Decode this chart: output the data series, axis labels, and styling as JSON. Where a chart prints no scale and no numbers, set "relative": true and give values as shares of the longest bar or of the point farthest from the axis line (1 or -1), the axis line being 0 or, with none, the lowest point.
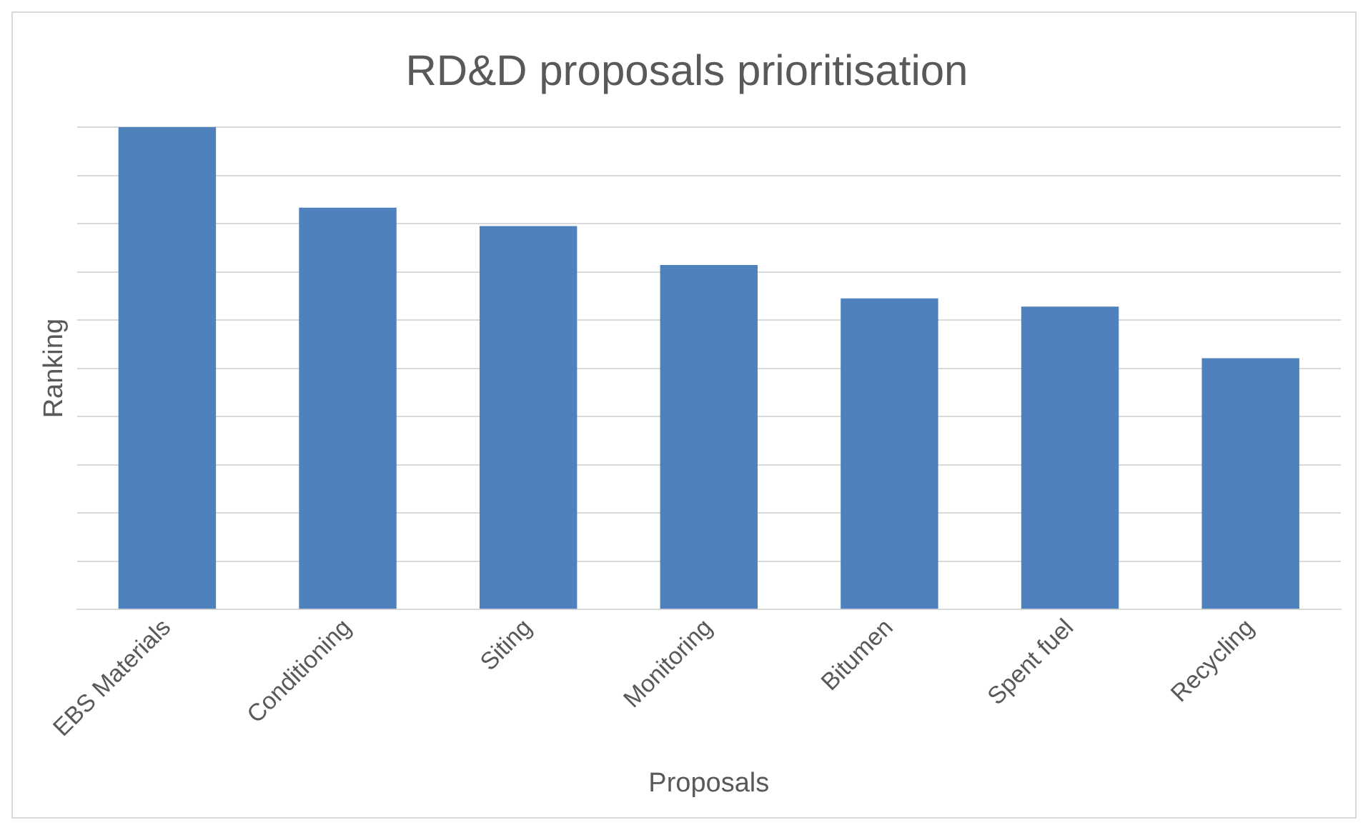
{
  "chart_data": {
    "type": "bar",
    "title": "RD&D proposals prioritisation",
    "xlabel": "Proposals",
    "ylabel": "Ranking",
    "categories": [
      "EBS Materials",
      "Conditioning",
      "Siting",
      "Monitoring",
      "Bitumen",
      "Spent fuel",
      "Recycling"
    ],
    "values": [
      1,
      0.833,
      0.795,
      0.714,
      0.645,
      0.628,
      0.521
    ],
    "color": "#4f81bd",
    "relative": true,
    "grid": "y",
    "legend": false
  }
}
